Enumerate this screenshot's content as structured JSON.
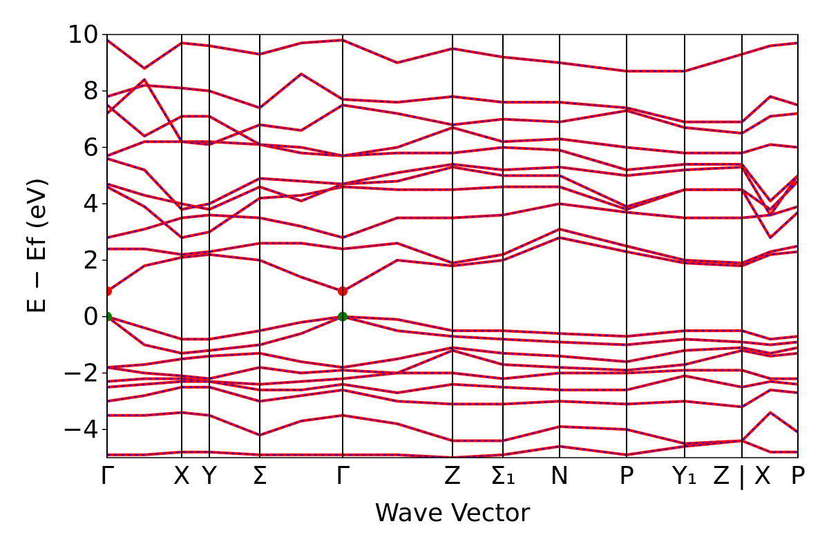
{
  "chart_data": {
    "type": "band-structure",
    "y_label": "E − Ef (eV)",
    "x_label": "Wave Vector",
    "ylim": [
      -5,
      10
    ],
    "yticks": [
      {
        "value": -4,
        "label": "−4"
      },
      {
        "value": -2,
        "label": "−2"
      },
      0,
      2,
      4,
      6,
      8,
      10
    ],
    "xlim": [
      0,
      1000
    ],
    "xticks": [
      {
        "value": 0,
        "label": "Γ"
      },
      {
        "value": 108,
        "label": "X"
      },
      {
        "value": 148,
        "label": "Y"
      },
      {
        "value": 221,
        "label": "Σ"
      },
      {
        "value": 341,
        "label": "Γ"
      },
      {
        "value": 500,
        "label": "Z"
      },
      {
        "value": 573,
        "label": "Σ₁"
      },
      {
        "value": 655,
        "label": "N"
      },
      {
        "value": 752,
        "label": "P"
      },
      {
        "value": 836,
        "label": "Y₁"
      },
      {
        "value": 919,
        "label": "Z | X"
      },
      {
        "value": 1000,
        "label": "P"
      }
    ],
    "overlay_color": "#0000ff",
    "x": [
      0,
      54,
      108,
      148,
      221,
      281,
      341,
      420,
      500,
      573,
      655,
      752,
      836,
      919,
      960,
      1000
    ],
    "series": [
      {
        "color": "#ff0000",
        "values": [
          0,
          -0.4,
          -0.8,
          -0.8,
          -0.5,
          -0.2,
          0,
          -0.1,
          -0.5,
          -0.5,
          -0.6,
          -0.7,
          -0.5,
          -0.5,
          -0.8,
          -0.7
        ]
      },
      {
        "color": "#ff0000",
        "values": [
          0,
          -1.0,
          -1.3,
          -1.2,
          -1.0,
          -0.6,
          0,
          -0.5,
          -0.7,
          -0.8,
          -0.9,
          -1.0,
          -0.8,
          -0.9,
          -1.0,
          -0.9
        ]
      },
      {
        "color": "#ff0000",
        "values": [
          -1.8,
          -1.7,
          -1.5,
          -1.4,
          -1.3,
          -1.6,
          -1.8,
          -1.5,
          -1.1,
          -1.3,
          -1.4,
          -1.6,
          -1.2,
          -1.1,
          -1.3,
          -1.1
        ]
      },
      {
        "color": "#ff0000",
        "values": [
          -1.8,
          -2.0,
          -2.1,
          -2.2,
          -1.8,
          -2.0,
          -1.9,
          -2.0,
          -1.2,
          -1.7,
          -1.8,
          -1.9,
          -1.7,
          -1.2,
          -1.4,
          -1.3
        ]
      },
      {
        "color": "#ff0000",
        "values": [
          -2.3,
          -2.2,
          -2.2,
          -2.3,
          -2.4,
          -2.3,
          -2.2,
          -2.0,
          -2.0,
          -2.2,
          -2.0,
          -2.0,
          -1.9,
          -1.9,
          -2.2,
          -2.2
        ]
      },
      {
        "color": "#ff0000",
        "values": [
          -2.5,
          -2.4,
          -2.3,
          -2.3,
          -2.6,
          -2.6,
          -2.4,
          -2.7,
          -2.4,
          -2.5,
          -2.6,
          -2.6,
          -2.1,
          -2.5,
          -2.3,
          -2.4
        ]
      },
      {
        "color": "#ff0000",
        "values": [
          -3.0,
          -2.8,
          -2.5,
          -2.5,
          -3.0,
          -2.8,
          -2.6,
          -3.0,
          -3.1,
          -3.1,
          -3.0,
          -3.1,
          -3.0,
          -3.2,
          -2.6,
          -2.7
        ]
      },
      {
        "color": "#ff0000",
        "values": [
          -3.5,
          -3.5,
          -3.4,
          -3.5,
          -4.2,
          -3.7,
          -3.5,
          -3.8,
          -4.4,
          -4.4,
          -3.9,
          -4.0,
          -4.5,
          -4.4,
          -3.4,
          -4.1
        ]
      },
      {
        "color": "#ff0000",
        "values": [
          -4.9,
          -4.9,
          -4.8,
          -4.8,
          -4.9,
          -4.9,
          -4.9,
          -4.9,
          -5.0,
          -4.9,
          -4.6,
          -4.9,
          -4.6,
          -4.4,
          -4.8,
          -4.8
        ]
      },
      {
        "color": "#ff0000",
        "values": [
          0.9,
          1.8,
          2.1,
          2.2,
          2.0,
          1.4,
          0.9,
          2.0,
          1.8,
          2.0,
          2.8,
          2.3,
          1.9,
          1.8,
          2.2,
          2.3
        ]
      },
      {
        "color": "#ff0000",
        "values": [
          2.4,
          2.4,
          2.2,
          2.3,
          2.6,
          2.6,
          2.4,
          2.6,
          1.9,
          2.2,
          3.1,
          2.5,
          2.0,
          1.9,
          2.3,
          2.5
        ]
      },
      {
        "color": "#ff0000",
        "values": [
          2.8,
          3.1,
          3.5,
          3.6,
          3.5,
          3.2,
          2.8,
          3.5,
          3.5,
          3.6,
          4.0,
          3.7,
          3.5,
          3.5,
          3.6,
          3.9
        ]
      },
      {
        "color": "#ff0000",
        "values": [
          4.6,
          3.9,
          2.8,
          3.0,
          4.2,
          4.3,
          4.6,
          4.5,
          4.5,
          4.6,
          4.6,
          3.8,
          4.5,
          4.5,
          2.8,
          3.7
        ]
      },
      {
        "color": "#ff0000",
        "values": [
          4.7,
          4.3,
          4.0,
          3.8,
          4.6,
          4.1,
          4.7,
          4.8,
          5.3,
          5.0,
          5.0,
          3.9,
          4.5,
          4.5,
          3.8,
          4.8
        ]
      },
      {
        "color": "#ff0000",
        "values": [
          5.6,
          5.2,
          3.8,
          4.0,
          4.9,
          4.8,
          4.7,
          5.1,
          5.4,
          5.2,
          5.3,
          5.0,
          5.2,
          5.3,
          3.6,
          5.0
        ]
      },
      {
        "color": "#ff0000",
        "values": [
          5.7,
          6.2,
          6.2,
          6.2,
          6.1,
          5.8,
          5.7,
          5.8,
          5.8,
          6.0,
          5.9,
          5.2,
          5.4,
          5.4,
          4.1,
          5.0
        ]
      },
      {
        "color": "#ff0000",
        "values": [
          7.5,
          6.4,
          7.1,
          7.1,
          6.1,
          6.0,
          5.7,
          6.0,
          6.7,
          6.2,
          6.3,
          6.0,
          5.8,
          5.8,
          6.1,
          6.0
        ]
      },
      {
        "color": "#ff0000",
        "values": [
          7.2,
          8.4,
          6.2,
          6.1,
          6.8,
          6.6,
          7.5,
          7.2,
          6.8,
          7.0,
          6.9,
          7.3,
          6.7,
          6.5,
          7.1,
          7.2
        ]
      },
      {
        "color": "#ff0000",
        "values": [
          7.8,
          8.2,
          8.1,
          8.0,
          7.4,
          8.6,
          7.7,
          7.6,
          7.8,
          7.6,
          7.6,
          7.4,
          6.9,
          6.9,
          7.8,
          7.5
        ]
      },
      {
        "color": "#ff0000",
        "values": [
          9.8,
          8.8,
          9.7,
          9.6,
          9.3,
          9.7,
          9.8,
          9.0,
          9.5,
          9.2,
          9.0,
          8.7,
          8.7,
          9.3,
          9.6,
          9.7
        ]
      }
    ],
    "points": [
      {
        "x": 0,
        "y": 0,
        "color": "#008000"
      },
      {
        "x": 341,
        "y": 0,
        "color": "#008000"
      },
      {
        "x": 0,
        "y": 0.9,
        "color": "#ff0000"
      },
      {
        "x": 341,
        "y": 0.9,
        "color": "#ff0000"
      }
    ]
  }
}
